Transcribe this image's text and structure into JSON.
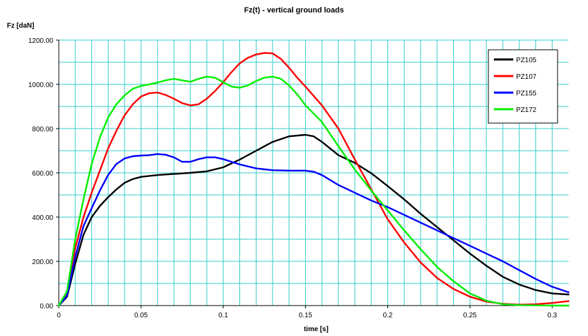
{
  "chart_data": {
    "type": "line",
    "title": "Fz(t) - vertical ground loads",
    "xlabel": "time [s]",
    "ylabel": "Fz [daN]",
    "xlim": [
      0,
      0.31
    ],
    "ylim": [
      0,
      1200
    ],
    "x_ticks": [
      {
        "value": 0,
        "label": "0"
      },
      {
        "value": 0.05,
        "label": "0.05"
      },
      {
        "value": 0.1,
        "label": "0.1"
      },
      {
        "value": 0.15,
        "label": "0.15"
      },
      {
        "value": 0.2,
        "label": "0.2"
      },
      {
        "value": 0.25,
        "label": "0.25"
      },
      {
        "value": 0.3,
        "label": "0.3"
      }
    ],
    "y_ticks": [
      {
        "value": 0,
        "label": "0.00"
      },
      {
        "value": 200,
        "label": "200.00"
      },
      {
        "value": 400,
        "label": "400.00"
      },
      {
        "value": 600,
        "label": "600.00"
      },
      {
        "value": 800,
        "label": "800.00"
      },
      {
        "value": 1000,
        "label": "1000.00"
      },
      {
        "value": 1200,
        "label": "1200.00"
      }
    ],
    "minor_grid_x_step": 0.01,
    "minor_grid_y_step": 100,
    "grid": true,
    "grid_color": "#33cccc",
    "legend_position": "top-right",
    "series": [
      {
        "name": "PZ105",
        "color": "#000000",
        "x": [
          0,
          0.005,
          0.01,
          0.015,
          0.02,
          0.025,
          0.03,
          0.035,
          0.04,
          0.045,
          0.05,
          0.06,
          0.07,
          0.08,
          0.09,
          0.1,
          0.11,
          0.12,
          0.13,
          0.14,
          0.15,
          0.155,
          0.16,
          0.17,
          0.18,
          0.19,
          0.2,
          0.21,
          0.22,
          0.23,
          0.24,
          0.25,
          0.26,
          0.27,
          0.28,
          0.29,
          0.3,
          0.31
        ],
        "y": [
          0,
          40,
          190,
          320,
          400,
          450,
          490,
          525,
          555,
          572,
          582,
          590,
          595,
          600,
          607,
          625,
          660,
          700,
          740,
          765,
          772,
          765,
          740,
          680,
          645,
          598,
          540,
          480,
          415,
          355,
          295,
          235,
          180,
          130,
          95,
          70,
          55,
          50
        ]
      },
      {
        "name": "PZ107",
        "color": "#ff0000",
        "x": [
          0,
          0.005,
          0.01,
          0.015,
          0.02,
          0.025,
          0.03,
          0.035,
          0.04,
          0.045,
          0.05,
          0.055,
          0.06,
          0.065,
          0.07,
          0.075,
          0.08,
          0.085,
          0.09,
          0.095,
          0.1,
          0.105,
          0.11,
          0.115,
          0.12,
          0.125,
          0.13,
          0.135,
          0.14,
          0.145,
          0.15,
          0.16,
          0.17,
          0.18,
          0.19,
          0.2,
          0.21,
          0.22,
          0.23,
          0.24,
          0.25,
          0.26,
          0.27,
          0.28,
          0.29,
          0.3,
          0.31
        ],
        "y": [
          0,
          60,
          260,
          400,
          510,
          610,
          710,
          790,
          860,
          910,
          945,
          960,
          963,
          952,
          935,
          915,
          905,
          910,
          935,
          970,
          1010,
          1055,
          1095,
          1120,
          1135,
          1142,
          1140,
          1115,
          1075,
          1030,
          990,
          905,
          800,
          660,
          525,
          390,
          285,
          195,
          125,
          75,
          40,
          18,
          8,
          4,
          6,
          12,
          20
        ]
      },
      {
        "name": "PZ155",
        "color": "#0000ff",
        "x": [
          0,
          0.005,
          0.01,
          0.015,
          0.02,
          0.025,
          0.03,
          0.035,
          0.04,
          0.045,
          0.05,
          0.055,
          0.06,
          0.065,
          0.07,
          0.075,
          0.08,
          0.085,
          0.09,
          0.095,
          0.1,
          0.105,
          0.11,
          0.12,
          0.13,
          0.14,
          0.15,
          0.155,
          0.16,
          0.17,
          0.18,
          0.19,
          0.2,
          0.21,
          0.22,
          0.23,
          0.24,
          0.25,
          0.26,
          0.27,
          0.28,
          0.29,
          0.3,
          0.31
        ],
        "y": [
          0,
          45,
          220,
          360,
          440,
          520,
          590,
          640,
          665,
          675,
          678,
          680,
          685,
          682,
          670,
          650,
          650,
          662,
          670,
          670,
          662,
          650,
          638,
          620,
          612,
          610,
          610,
          605,
          590,
          545,
          510,
          475,
          445,
          410,
          375,
          340,
          305,
          270,
          235,
          200,
          160,
          120,
          85,
          60
        ]
      },
      {
        "name": "PZ172",
        "color": "#00ee00",
        "x": [
          0,
          0.005,
          0.01,
          0.015,
          0.02,
          0.025,
          0.03,
          0.035,
          0.04,
          0.045,
          0.05,
          0.055,
          0.06,
          0.065,
          0.07,
          0.075,
          0.08,
          0.085,
          0.09,
          0.095,
          0.1,
          0.105,
          0.11,
          0.115,
          0.12,
          0.125,
          0.13,
          0.135,
          0.14,
          0.145,
          0.15,
          0.16,
          0.17,
          0.18,
          0.19,
          0.2,
          0.21,
          0.22,
          0.23,
          0.24,
          0.25,
          0.26,
          0.27,
          0.28,
          0.29,
          0.3,
          0.31
        ],
        "y": [
          0,
          65,
          300,
          480,
          640,
          760,
          850,
          910,
          950,
          980,
          993,
          1000,
          1008,
          1018,
          1025,
          1018,
          1012,
          1025,
          1035,
          1030,
          1010,
          990,
          985,
          995,
          1015,
          1030,
          1035,
          1025,
          995,
          955,
          905,
          830,
          720,
          615,
          520,
          430,
          340,
          255,
          175,
          110,
          55,
          22,
          6,
          2,
          1,
          0,
          0
        ]
      }
    ]
  }
}
